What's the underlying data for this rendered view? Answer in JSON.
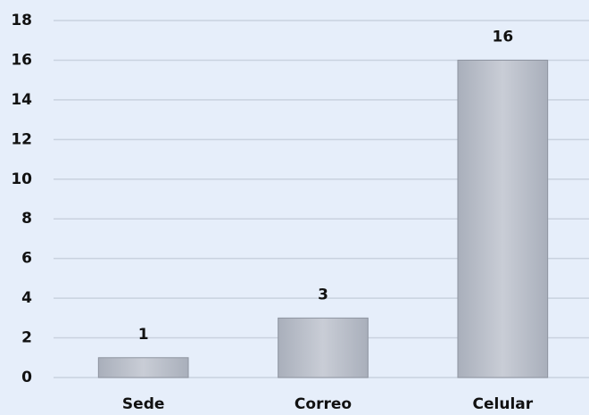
{
  "chart_data": {
    "type": "bar",
    "categories": [
      "Sede",
      "Correo",
      "Celular"
    ],
    "values": [
      1,
      3,
      16
    ],
    "color": "#bcc1cc",
    "ylim": [
      0,
      18
    ],
    "yticks": [
      0,
      2,
      4,
      6,
      8,
      10,
      12,
      14,
      16,
      18
    ],
    "grid": true,
    "data_labels": true
  }
}
